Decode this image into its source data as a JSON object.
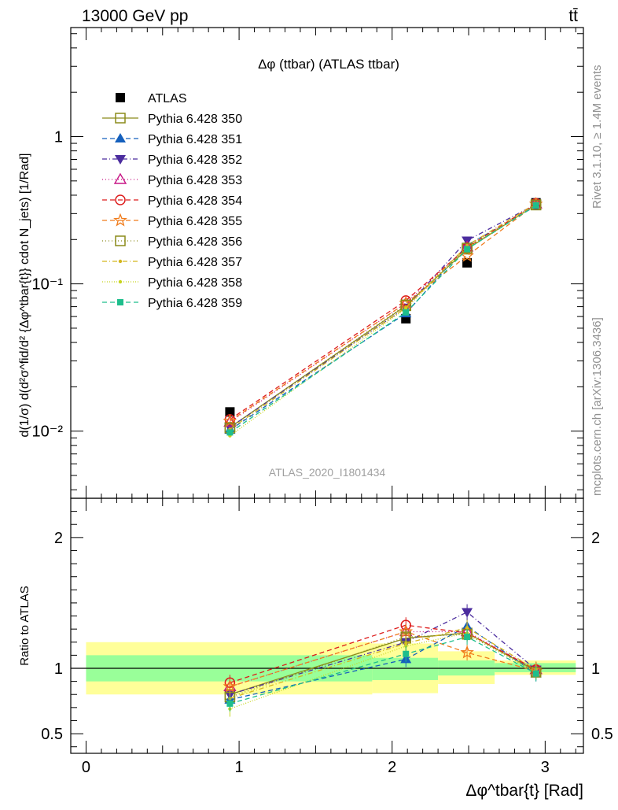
{
  "header": {
    "left": "13000 GeV pp",
    "right": "tt̄"
  },
  "side_labels": {
    "rivet": "Rivet 3.1.10, ≥ 1.4M events",
    "mcplots": "mcplots.cern.ch [arXiv:1306.3436]"
  },
  "watermark": "ATLAS_2020_I1801434",
  "chart_data": [
    {
      "type": "line",
      "panel": "main",
      "title": "Δφ (ttbar) (ATLAS ttbar)",
      "ylabel": "d(1/σ) d(d²σ^fid/d² {Δφ^tbar{t}} cdot N_jets) [1/Rad]",
      "xlabel": "Δφ^tbar{t} [Rad]",
      "y_scale": "log",
      "xlim": [
        -0.1,
        3.25
      ],
      "ylim": [
        0.0035,
        5.5
      ],
      "y_tick_labels": [
        "10⁻²",
        "10⁻¹",
        "1"
      ],
      "x_tick_labels": [
        "0",
        "1",
        "2",
        "3"
      ],
      "legend_position": "top-left",
      "x": [
        0.94,
        2.09,
        2.49,
        2.94
      ],
      "series": [
        {
          "name": "ATLAS",
          "color": "#000000",
          "marker": "filled-square",
          "dash": "none",
          "values": [
            0.0135,
            0.058,
            0.139,
            0.355
          ]
        },
        {
          "name": "Pythia 6.428 350",
          "color": "#8b8b1a",
          "marker": "open-square",
          "dash": "solid",
          "values": [
            0.0106,
            0.071,
            0.172,
            0.345
          ]
        },
        {
          "name": "Pythia 6.428 351",
          "color": "#1560bd",
          "marker": "filled-triangle-up",
          "dash": "6,4",
          "values": [
            0.0102,
            0.063,
            0.183,
            0.338
          ]
        },
        {
          "name": "Pythia 6.428 352",
          "color": "#4b2c9e",
          "marker": "filled-triangle-down",
          "dash": "6,3,1,3",
          "values": [
            0.0106,
            0.069,
            0.197,
            0.347
          ]
        },
        {
          "name": "Pythia 6.428 353",
          "color": "#c71585",
          "marker": "open-triangle-up",
          "dash": "1,3",
          "values": [
            0.0115,
            0.074,
            0.178,
            0.349
          ]
        },
        {
          "name": "Pythia 6.428 354",
          "color": "#dd1c1c",
          "marker": "open-circle",
          "dash": "6,4",
          "values": [
            0.012,
            0.077,
            0.176,
            0.352
          ]
        },
        {
          "name": "Pythia 6.428 355",
          "color": "#f07c1c",
          "marker": "open-star",
          "dash": "6,4",
          "values": [
            0.0117,
            0.074,
            0.155,
            0.348
          ]
        },
        {
          "name": "Pythia 6.428 356",
          "color": "#8b8b1a",
          "marker": "open-square",
          "dash": "1,3",
          "values": [
            0.0105,
            0.072,
            0.175,
            0.343
          ]
        },
        {
          "name": "Pythia 6.428 357",
          "color": "#d4b61e",
          "marker": "small-dot",
          "dash": "6,3,1,3",
          "values": [
            0.0103,
            0.069,
            0.182,
            0.351
          ]
        },
        {
          "name": "Pythia 6.428 358",
          "color": "#c8d41e",
          "marker": "small-dot",
          "dash": "1,2",
          "values": [
            0.0093,
            0.068,
            0.176,
            0.343
          ]
        },
        {
          "name": "Pythia 6.428 359",
          "color": "#1ebe8c",
          "marker": "filled-square-small",
          "dash": "6,4",
          "values": [
            0.0098,
            0.064,
            0.172,
            0.341
          ]
        }
      ]
    },
    {
      "type": "line",
      "panel": "ratio",
      "ylabel": "Ratio to ATLAS",
      "xlabel": "Δφ^tbar{t} [Rad]",
      "xlim": [
        -0.1,
        3.25
      ],
      "ylim": [
        0.35,
        2.3
      ],
      "y_tick_labels": [
        "0.5",
        "1",
        "2"
      ],
      "x_tick_labels": [
        "0",
        "1",
        "2",
        "3"
      ],
      "bands": {
        "bin_edges": [
          0.0,
          1.87,
          2.3,
          2.67,
          3.2
        ],
        "green_lo": [
          0.9,
          0.91,
          0.945,
          0.97
        ],
        "green_hi": [
          1.1,
          1.08,
          1.06,
          1.04
        ],
        "yellow_lo": [
          0.8,
          0.81,
          0.88,
          0.95
        ],
        "yellow_hi": [
          1.2,
          1.19,
          1.13,
          1.06
        ],
        "green_color": "#99ff99",
        "yellow_color": "#ffff99"
      },
      "x": [
        0.94,
        2.09,
        2.49,
        2.94
      ],
      "series": [
        {
          "name": "Pythia 6.428 350",
          "values": [
            0.8,
            1.23,
            1.27,
            0.98
          ]
        },
        {
          "name": "Pythia 6.428 351",
          "values": [
            0.76,
            1.07,
            1.32,
            0.96
          ]
        },
        {
          "name": "Pythia 6.428 352",
          "values": [
            0.8,
            1.2,
            1.43,
            0.99
          ]
        },
        {
          "name": "Pythia 6.428 353",
          "values": [
            0.86,
            1.28,
            1.28,
            0.99
          ]
        },
        {
          "name": "Pythia 6.428 354",
          "values": [
            0.89,
            1.33,
            1.27,
            0.99
          ]
        },
        {
          "name": "Pythia 6.428 355",
          "values": [
            0.86,
            1.28,
            1.12,
            0.98
          ]
        },
        {
          "name": "Pythia 6.428 356",
          "values": [
            0.78,
            1.24,
            1.26,
            0.97
          ]
        },
        {
          "name": "Pythia 6.428 357",
          "values": [
            0.77,
            1.19,
            1.31,
            0.99
          ]
        },
        {
          "name": "Pythia 6.428 358",
          "values": [
            0.69,
            1.17,
            1.27,
            0.97
          ]
        },
        {
          "name": "Pythia 6.428 359",
          "values": [
            0.73,
            1.11,
            1.24,
            0.96
          ]
        }
      ]
    }
  ]
}
